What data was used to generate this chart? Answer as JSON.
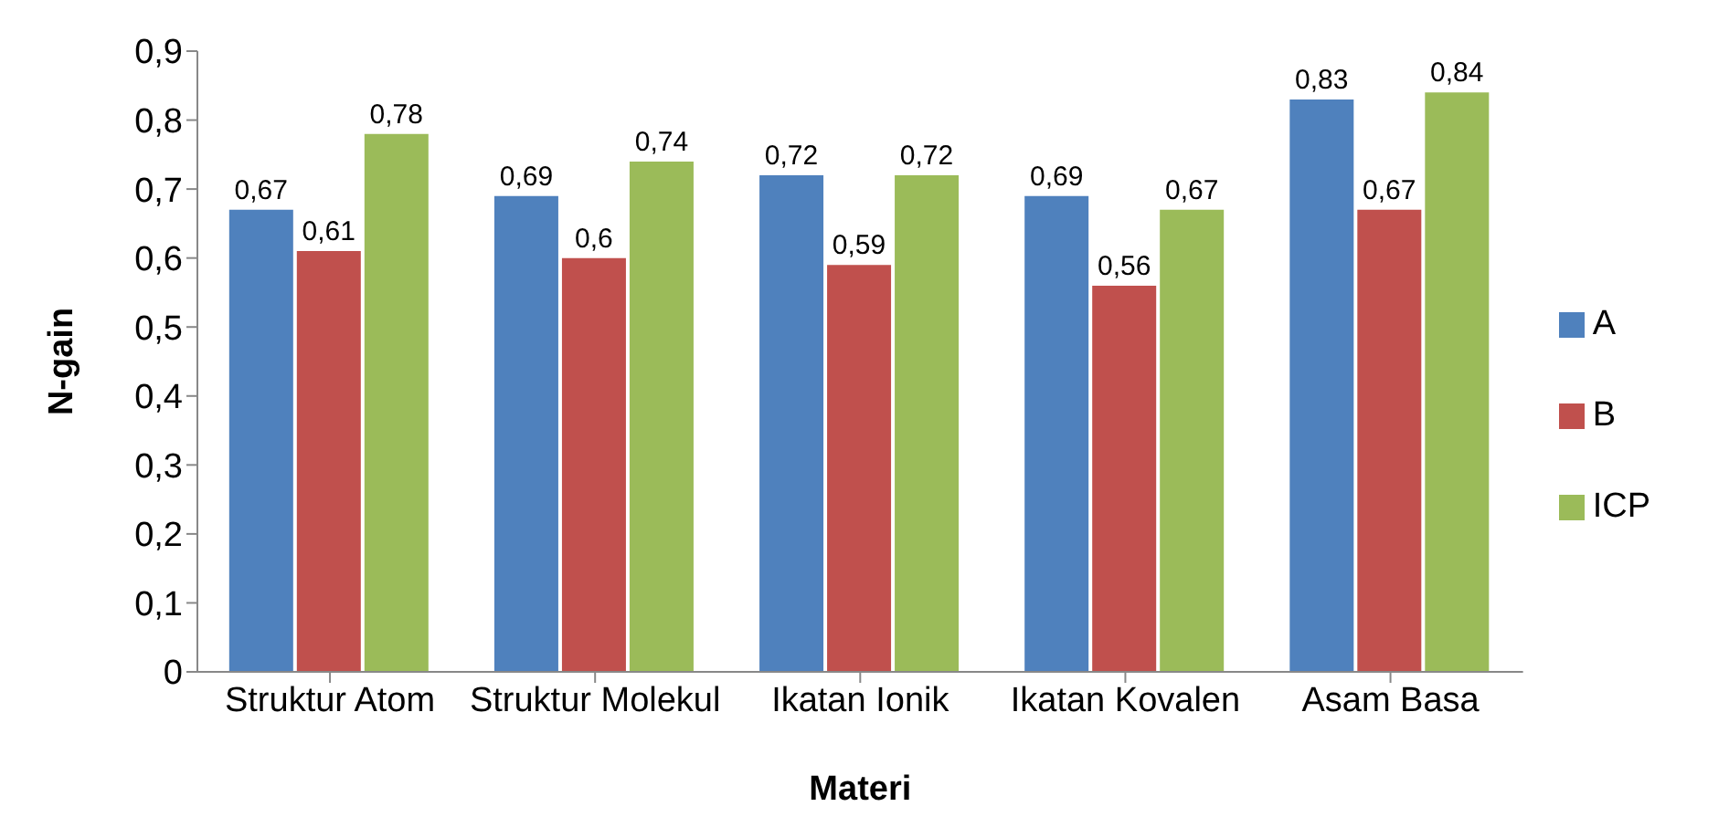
{
  "chart_data": {
    "type": "bar",
    "xlabel": "Materi",
    "ylabel": "N-gain",
    "categories": [
      "Struktur Atom",
      "Struktur Molekul",
      "Ikatan Ionik",
      "Ikatan Kovalen",
      "Asam Basa"
    ],
    "series": [
      {
        "name": "A",
        "color": "#4f81bd",
        "values": [
          0.67,
          0.69,
          0.72,
          0.69,
          0.83
        ],
        "value_labels": [
          "0,67",
          "0,69",
          "0,72",
          "0,69",
          "0,83"
        ]
      },
      {
        "name": "B",
        "color": "#c0504d",
        "values": [
          0.61,
          0.6,
          0.59,
          0.56,
          0.67
        ],
        "value_labels": [
          "0,61",
          "0,6",
          "0,59",
          "0,56",
          "0,67"
        ]
      },
      {
        "name": "ICP",
        "color": "#9bbb59",
        "values": [
          0.78,
          0.74,
          0.72,
          0.67,
          0.84
        ],
        "value_labels": [
          "0,78",
          "0,74",
          "0,72",
          "0,67",
          "0,84"
        ]
      }
    ],
    "ylim": [
      0,
      0.9
    ],
    "yticks": [
      0,
      {
        "value": 0.1,
        "label": "0,1"
      },
      {
        "value": 0.2,
        "label": "0,2"
      },
      {
        "value": 0.3,
        "label": "0,3"
      },
      {
        "value": 0.4,
        "label": "0,4"
      },
      {
        "value": 0.5,
        "label": "0,5"
      },
      {
        "value": 0.6,
        "label": "0,6"
      },
      {
        "value": 0.7,
        "label": "0,7"
      },
      {
        "value": 0.8,
        "label": "0,8"
      },
      {
        "value": 0.9,
        "label": "0,9"
      }
    ],
    "grid": false,
    "legend": "right"
  }
}
